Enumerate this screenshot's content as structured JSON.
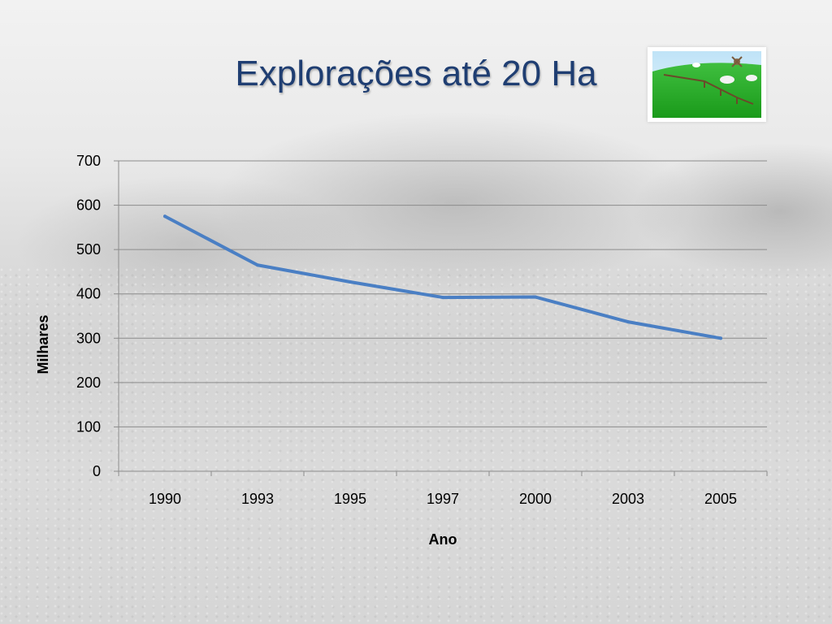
{
  "slide": {
    "title": "Explorações até 20 Ha",
    "title_color": "#1f3e72",
    "thumbnail_icon": "farm-landscape-icon"
  },
  "chart_data": {
    "type": "line",
    "categories": [
      "1990",
      "1993",
      "1995",
      "1997",
      "2000",
      "2003",
      "2005"
    ],
    "series": [
      {
        "values": [
          575,
          465,
          427,
          392,
          393,
          337,
          300
        ],
        "color": "#4a7fc4"
      }
    ],
    "xlabel": "Ano",
    "ylabel": "Milhares",
    "ylim": [
      0,
      700
    ],
    "yticks": [
      0,
      100,
      200,
      300,
      400,
      500,
      600,
      700
    ],
    "grid": true,
    "legend": "none"
  }
}
